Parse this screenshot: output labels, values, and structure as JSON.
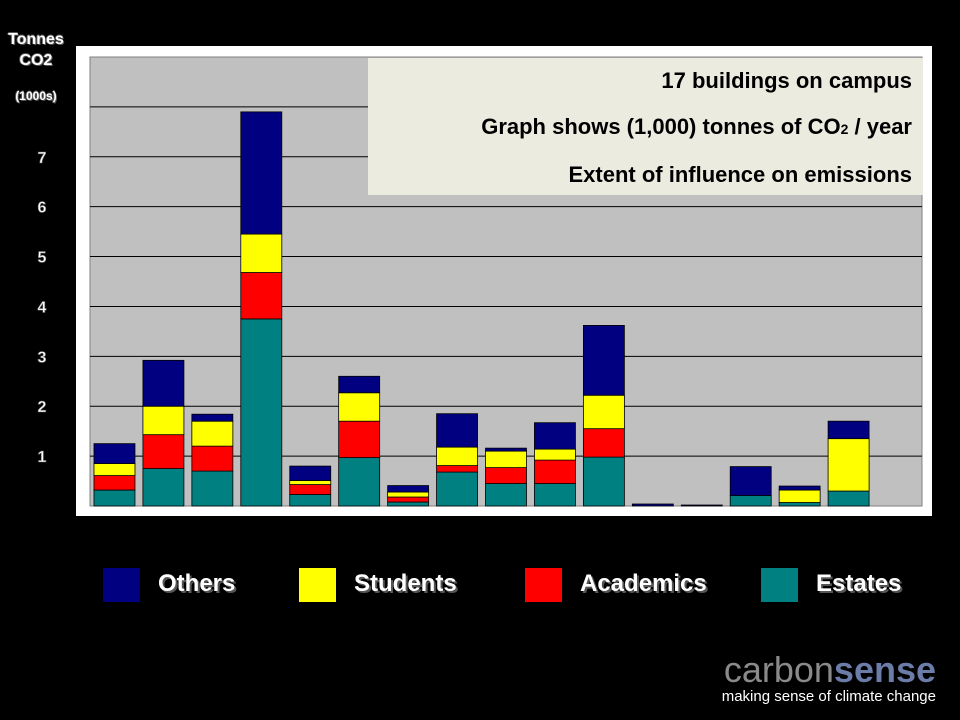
{
  "y_axis": {
    "title_line1": "Tonnes",
    "title_line2": "CO2",
    "title_line3": "(1000s)"
  },
  "info_box": {
    "line1": "17 buildings on campus",
    "line2_before": "Graph shows (1,000) tonnes of CO",
    "line2_sub": "2",
    "line2_after": " / year",
    "line3": "Extent of influence on emissions"
  },
  "legend": [
    {
      "label": "Others",
      "color": "#000080"
    },
    {
      "label": "Students",
      "color": "#ffff00"
    },
    {
      "label": "Academics",
      "color": "#ff0000"
    },
    {
      "label": "Estates",
      "color": "#008080"
    }
  ],
  "logo": {
    "word_a": "carbon",
    "word_b": "sense",
    "tagline": "making sense of climate change"
  },
  "chart_data": {
    "type": "bar",
    "stacked": true,
    "categories": [
      "",
      "",
      "",
      "",
      "",
      "",
      "",
      "",
      "",
      "",
      "",
      "",
      "",
      "",
      "",
      "",
      ""
    ],
    "series": [
      {
        "name": "Estates",
        "color": "#008080",
        "values": [
          0.32,
          0.75,
          0.7,
          3.75,
          0.23,
          0.97,
          0.08,
          0.68,
          0.45,
          0.45,
          0.98,
          0.0,
          0.0,
          0.21,
          0.07,
          0.3,
          0
        ]
      },
      {
        "name": "Academics",
        "color": "#ff0000",
        "values": [
          0.29,
          0.68,
          0.5,
          0.93,
          0.2,
          0.73,
          0.1,
          0.13,
          0.32,
          0.47,
          0.57,
          0.0,
          0.0,
          0.0,
          0.0,
          0.0,
          0
        ]
      },
      {
        "name": "Students",
        "color": "#ffff00",
        "values": [
          0.24,
          0.57,
          0.5,
          0.77,
          0.08,
          0.57,
          0.1,
          0.37,
          0.33,
          0.22,
          0.67,
          0.0,
          0.0,
          0.0,
          0.25,
          1.05,
          0
        ]
      },
      {
        "name": "Others",
        "color": "#000080",
        "values": [
          0.4,
          0.92,
          0.14,
          2.45,
          0.29,
          0.33,
          0.13,
          0.67,
          0.06,
          0.53,
          1.4,
          0.04,
          0.02,
          0.58,
          0.08,
          0.35,
          0
        ]
      }
    ],
    "yticks": [
      1,
      2,
      3,
      4,
      5,
      6,
      7
    ],
    "ylim": [
      0,
      9
    ],
    "ylabel": "Tonnes CO2 (1000s)",
    "grid": true,
    "legend_position": "bottom"
  }
}
